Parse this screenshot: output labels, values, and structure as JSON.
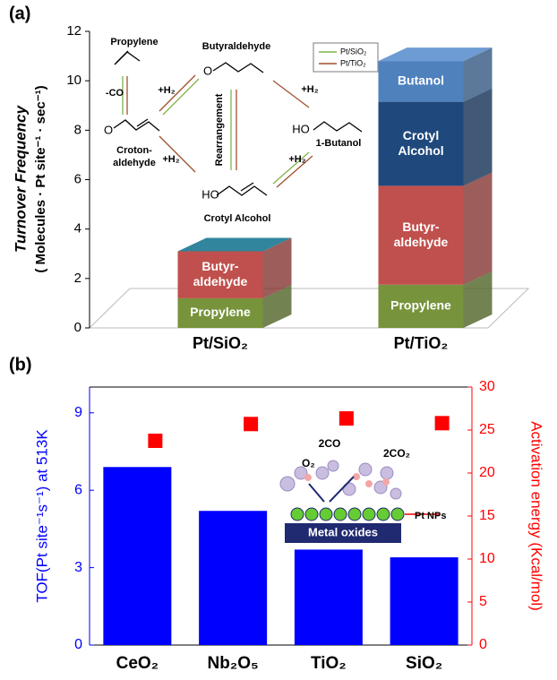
{
  "chart_data": [
    {
      "type": "bar3d_stacked",
      "panel_label": "(a)",
      "ylabel": [
        "Turnover Frequency",
        "( Molecules · Pt site⁻¹ · sec⁻¹)"
      ],
      "categories": [
        "Pt/SiO₂",
        "Pt/TiO₂"
      ],
      "ylim": [
        0,
        12
      ],
      "yticks": [
        0,
        2,
        4,
        6,
        8,
        10,
        12
      ],
      "top_colors": [
        "#31859c",
        "#6d9bd3"
      ],
      "series": [
        {
          "name": "Propylene",
          "color": "#77933c",
          "values": [
            1.2,
            1.75
          ]
        },
        {
          "name": "Butyr- aldehyde",
          "color": "#c0504d",
          "values": [
            1.9,
            4.0
          ]
        },
        {
          "name": "Crotyl Alcohol",
          "color": "#1f497d",
          "values": [
            null,
            3.4
          ]
        },
        {
          "name": "Butanol",
          "color": "#4f81bd",
          "values": [
            null,
            1.65
          ]
        }
      ],
      "scheme_labels": [
        "Propylene",
        "-CO",
        "+H₂",
        "Croton-",
        "aldehyde",
        "Butyraldehyde",
        "Rearrangement",
        "+H₂",
        "HO",
        "Crotyl Alcohol",
        "+H₂",
        "HO",
        "1-Butanol",
        "+H₂",
        "O",
        "O"
      ],
      "legend": [
        {
          "name": "Pt/SiO₂",
          "color": "#7fb34a"
        },
        {
          "name": "Pt/TiO₂",
          "color": "#a0522d"
        }
      ]
    },
    {
      "type": "bar_scatter_dual",
      "panel_label": "(b)",
      "categories": [
        "CeO₂",
        "Nb₂O₅",
        "TiO₂",
        "SiO₂"
      ],
      "ylabel": "TOF(Pt site⁻¹s⁻¹) at 513K",
      "y2label": "Activation energy (Kcal/mol)",
      "ylim": [
        0,
        10
      ],
      "yticks": [
        0,
        3,
        6,
        9
      ],
      "y2lim": [
        0,
        30
      ],
      "y2ticks": [
        0,
        5,
        10,
        15,
        20,
        25,
        30
      ],
      "series": [
        {
          "color": "#0000ff",
          "values": [
            6.9,
            5.2,
            3.7,
            3.4
          ]
        },
        {
          "color": "#ff0000",
          "axis": "y2",
          "values": [
            23.75,
            25.7,
            26.35,
            25.8
          ]
        }
      ],
      "inset_labels": [
        "O₂",
        "2CO",
        "2CO₂",
        "Pt NPs",
        "Metal oxides"
      ]
    }
  ]
}
